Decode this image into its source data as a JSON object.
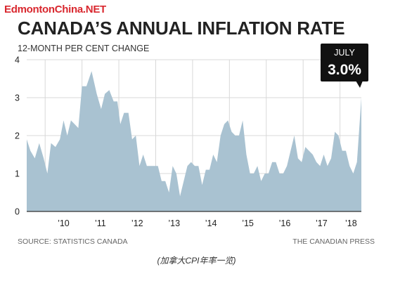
{
  "watermark": "EdmontonChina.NET",
  "chart_data": {
    "type": "area",
    "title": "CANADA’S ANNUAL INFLATION RATE",
    "subtitle": "12-MONTH PER CENT CHANGE",
    "ylim": [
      0,
      4
    ],
    "yticks": [
      0,
      1,
      2,
      3,
      4
    ],
    "xlim": [
      2009.5,
      2018.58
    ],
    "xticks": [
      {
        "x": 2010.5,
        "label": "’10"
      },
      {
        "x": 2011.5,
        "label": "’11"
      },
      {
        "x": 2012.5,
        "label": "’12"
      },
      {
        "x": 2013.5,
        "label": "’13"
      },
      {
        "x": 2014.5,
        "label": "’14"
      },
      {
        "x": 2015.5,
        "label": "’15"
      },
      {
        "x": 2016.5,
        "label": "’16"
      },
      {
        "x": 2017.5,
        "label": "’17"
      },
      {
        "x": 2018.3,
        "label": "’18"
      }
    ],
    "grid": true,
    "fill_color": "#a9c2d1",
    "series": [
      {
        "x": [
          2009.5,
          2009.6,
          2009.72,
          2009.84,
          2009.96,
          2010.06,
          2010.16,
          2010.28,
          2010.4,
          2010.5,
          2010.6,
          2010.7,
          2010.8,
          2010.9,
          2011.0,
          2011.12,
          2011.26,
          2011.4,
          2011.52,
          2011.62,
          2011.74,
          2011.86,
          2011.96,
          2012.04,
          2012.14,
          2012.26,
          2012.36,
          2012.46,
          2012.56,
          2012.66,
          2012.76,
          2012.86,
          2012.96,
          2013.06,
          2013.16,
          2013.26,
          2013.36,
          2013.46,
          2013.56,
          2013.66,
          2013.76,
          2013.86,
          2013.96,
          2014.06,
          2014.16,
          2014.26,
          2014.36,
          2014.46,
          2014.56,
          2014.66,
          2014.76,
          2014.86,
          2014.96,
          2015.06,
          2015.16,
          2015.26,
          2015.36,
          2015.46,
          2015.56,
          2015.66,
          2015.76,
          2015.86,
          2015.96,
          2016.06,
          2016.16,
          2016.26,
          2016.36,
          2016.46,
          2016.56,
          2016.66,
          2016.76,
          2016.86,
          2016.96,
          2017.06,
          2017.16,
          2017.26,
          2017.36,
          2017.46,
          2017.56,
          2017.66,
          2017.76,
          2017.86,
          2017.96,
          2018.06,
          2018.16,
          2018.26,
          2018.36,
          2018.46,
          2018.58
        ],
        "y": [
          1.9,
          1.6,
          1.4,
          1.8,
          1.4,
          1.0,
          1.8,
          1.7,
          1.9,
          2.4,
          2.0,
          2.4,
          2.3,
          2.2,
          3.3,
          3.3,
          3.7,
          3.1,
          2.7,
          3.1,
          3.2,
          2.9,
          2.9,
          2.3,
          2.6,
          2.6,
          1.9,
          2.0,
          1.2,
          1.5,
          1.2,
          1.2,
          1.2,
          1.2,
          0.8,
          0.8,
          0.5,
          1.2,
          1.0,
          0.4,
          0.8,
          1.2,
          1.3,
          1.2,
          1.2,
          0.7,
          1.1,
          1.1,
          1.5,
          1.3,
          2.0,
          2.3,
          2.4,
          2.1,
          2.0,
          2.0,
          2.4,
          1.5,
          1.0,
          1.0,
          1.2,
          0.8,
          1.0,
          1.0,
          1.3,
          1.3,
          1.0,
          1.0,
          1.2,
          1.6,
          2.0,
          1.4,
          1.3,
          1.7,
          1.6,
          1.5,
          1.3,
          1.2,
          1.5,
          1.2,
          1.4,
          2.1,
          2.0,
          1.6,
          1.6,
          1.2,
          1.0,
          1.3,
          3.0
        ]
      }
    ],
    "callout": {
      "label": "JULY",
      "value": "3.0%"
    }
  },
  "source": "SOURCE: STATISTICS CANADA",
  "credit": "THE CANADIAN PRESS",
  "caption": "(加拿大CPI年率一览)"
}
